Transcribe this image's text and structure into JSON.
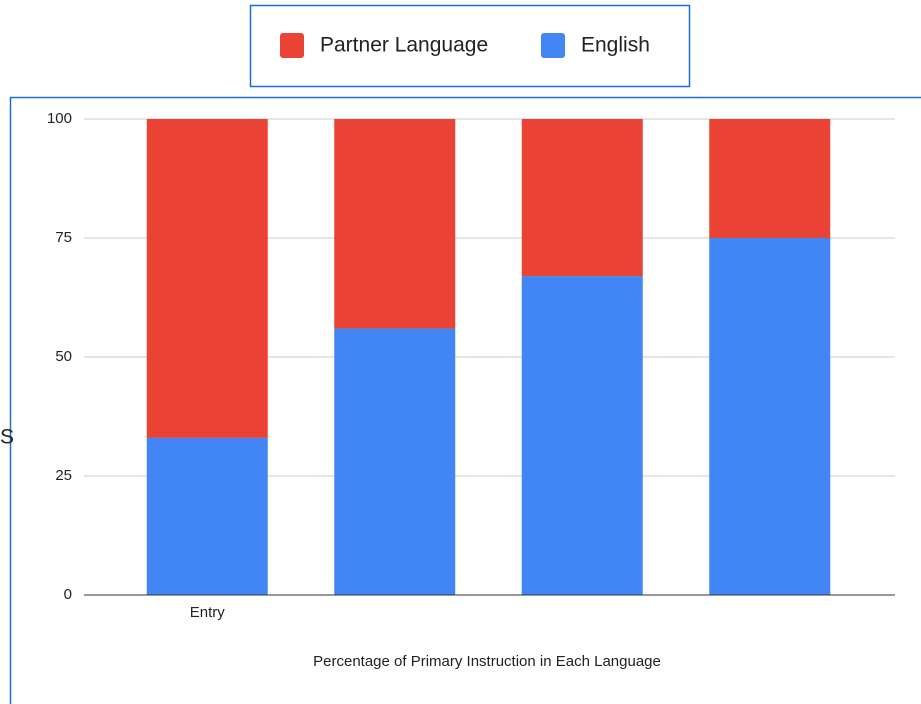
{
  "chart_data": {
    "type": "stacked_bar",
    "ylabel": "S",
    "xlabel": "Percentage of Primary Instruction in Each Language",
    "categories": [
      "Entry",
      null,
      null,
      null
    ],
    "series": [
      {
        "name": "Partner Language",
        "color": "#ea4335",
        "values": [
          67,
          44,
          33,
          25
        ]
      },
      {
        "name": "English",
        "color": "#4285f4",
        "values": [
          33,
          56,
          67,
          75
        ]
      }
    ],
    "ylim": [
      0,
      100
    ],
    "yticks": [
      0,
      25,
      50,
      75,
      100
    ],
    "grid": true,
    "legend": "top"
  }
}
